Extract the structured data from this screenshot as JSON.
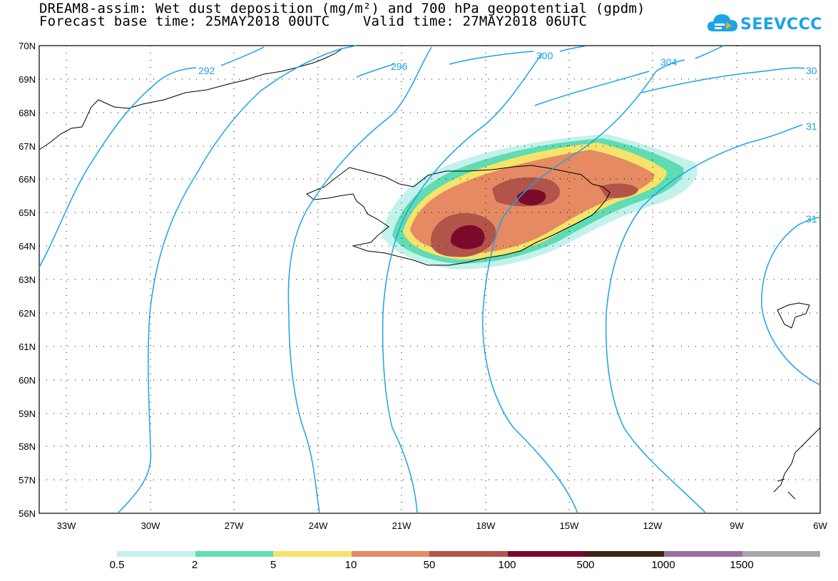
{
  "title": {
    "line1": "DREAM8-assim: Wet dust deposition (mg/m²) and 700 hPa geopotential (gpdm)",
    "line2": "Forecast base time: 25MAY2018 00UTC    Valid time: 27MAY2018 06UTC"
  },
  "logo": {
    "text": "SEEVCCC",
    "icon": "cloud-icon",
    "color": "#1aa3e8"
  },
  "axes": {
    "lat_labels": [
      "70N",
      "69N",
      "68N",
      "67N",
      "66N",
      "65N",
      "64N",
      "63N",
      "62N",
      "61N",
      "60N",
      "59N",
      "58N",
      "57N",
      "56N"
    ],
    "lon_labels": [
      "33W",
      "30W",
      "27W",
      "24W",
      "21W",
      "18W",
      "15W",
      "12W",
      "9W",
      "6W"
    ]
  },
  "contours": {
    "labels": [
      "292",
      "296",
      "300",
      "304",
      "30",
      "31",
      "31"
    ],
    "color": "#1aa3e8"
  },
  "legend": {
    "colors": [
      "#c3f1ec",
      "#5fdcb2",
      "#f6e46a",
      "#e58a62",
      "#b3544b",
      "#7b0a2a",
      "#3d2318",
      "#9b6fa0",
      "#a8a8a8"
    ],
    "labels": [
      "0.5",
      "2",
      "5",
      "10",
      "50",
      "100",
      "500",
      "1000",
      "1500"
    ]
  }
}
